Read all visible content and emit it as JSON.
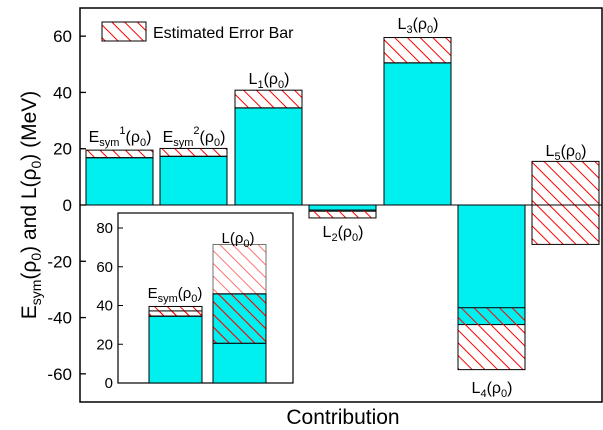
{
  "chart_data": [
    {
      "type": "bar",
      "xlabel": "Contribution",
      "ylabel": {
        "p1": "E",
        "s1": "sym",
        "p2": "(ρ",
        "s2": "0",
        "p3": ") and L(ρ",
        "s3": "0",
        "p4": ") (MeV)"
      },
      "ylim": [
        -70,
        70
      ],
      "yticks": [
        -60,
        -40,
        -20,
        0,
        20,
        40,
        60
      ],
      "legend": {
        "label": "Estimated Error Bar",
        "position": "top-left"
      },
      "categories": [
        {
          "key": "Esym1",
          "parts": [
            {
              "t": "E"
            },
            {
              "t": "sym",
              "sub": true
            },
            {
              "t": "1",
              "sup": true
            },
            {
              "t": "(ρ"
            },
            {
              "t": "0",
              "sub": true
            },
            {
              "t": ")"
            }
          ]
        },
        {
          "key": "Esym2",
          "parts": [
            {
              "t": "E"
            },
            {
              "t": "sym",
              "sub": true
            },
            {
              "t": "2",
              "sup": true
            },
            {
              "t": "(ρ"
            },
            {
              "t": "0",
              "sub": true
            },
            {
              "t": ")"
            }
          ]
        },
        {
          "key": "L1",
          "parts": [
            {
              "t": "L"
            },
            {
              "t": "1",
              "sub": true
            },
            {
              "t": "(ρ"
            },
            {
              "t": "0",
              "sub": true
            },
            {
              "t": ")"
            }
          ]
        },
        {
          "key": "L2",
          "parts": [
            {
              "t": "L"
            },
            {
              "t": "2",
              "sub": true
            },
            {
              "t": "(ρ"
            },
            {
              "t": "0",
              "sub": true
            },
            {
              "t": ")"
            }
          ]
        },
        {
          "key": "L3",
          "parts": [
            {
              "t": "L"
            },
            {
              "t": "3",
              "sub": true
            },
            {
              "t": "(ρ"
            },
            {
              "t": "0",
              "sub": true
            },
            {
              "t": ")"
            }
          ]
        },
        {
          "key": "L4",
          "parts": [
            {
              "t": "L"
            },
            {
              "t": "4",
              "sub": true
            },
            {
              "t": "(ρ"
            },
            {
              "t": "0",
              "sub": true
            },
            {
              "t": ")"
            }
          ]
        },
        {
          "key": "L5",
          "parts": [
            {
              "t": "L"
            },
            {
              "t": "5",
              "sub": true
            },
            {
              "t": "(ρ"
            },
            {
              "t": "0",
              "sub": true
            },
            {
              "t": ")"
            }
          ]
        }
      ],
      "values": [
        16.8,
        17.3,
        34.5,
        -2.2,
        50.5,
        -42.5,
        0
      ],
      "error_bar": [
        [
          16.8,
          19.5
        ],
        [
          17.3,
          20.1
        ],
        [
          34.5,
          40.8
        ],
        [
          -1.8,
          -4.6
        ],
        [
          50.5,
          59.5
        ],
        [
          -36.5,
          -58.5
        ],
        [
          -14,
          15.5
        ]
      ],
      "colors": {
        "fill": "#00f0f0",
        "hatch": "#ff0000",
        "edge": "#000000"
      }
    },
    {
      "type": "bar",
      "inset": true,
      "ylim": [
        0,
        80
      ],
      "yticks": [
        0,
        20,
        40,
        60,
        80
      ],
      "categories": [
        {
          "key": "Esym",
          "parts": [
            {
              "t": "E"
            },
            {
              "t": "sym",
              "sub": true
            },
            {
              "t": "(ρ"
            },
            {
              "t": "0",
              "sub": true
            },
            {
              "t": ")"
            }
          ]
        },
        {
          "key": "L",
          "parts": [
            {
              "t": "L(ρ"
            },
            {
              "t": "0",
              "sub": true
            },
            {
              "t": ")"
            }
          ]
        }
      ],
      "values": [
        34.5,
        20.5
      ],
      "error_bar": [
        [
          34.5,
          39.5
        ],
        [
          20.5,
          71.5
        ]
      ],
      "hatch_over_bar": [
        [
          34.5,
          37.2
        ],
        [
          20.5,
          46
        ]
      ],
      "bar_top": [
        34.5,
        46
      ],
      "colors": {
        "fill": "#00f0f0",
        "hatch": "#ff0000",
        "edge": "#000000"
      }
    }
  ]
}
